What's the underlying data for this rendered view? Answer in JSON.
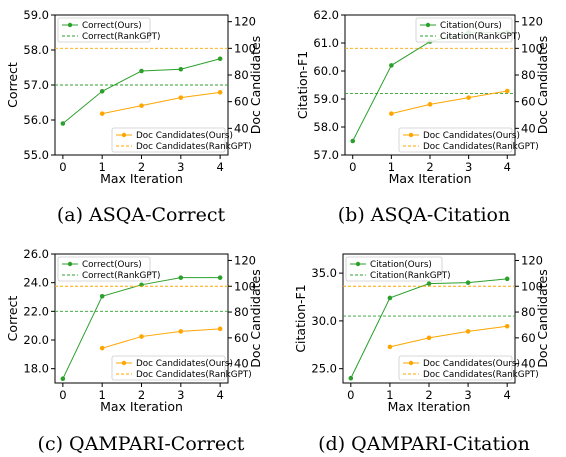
{
  "figure": {
    "colors": {
      "ours_green": "#2ca02c",
      "rank_green": "#2ca02c",
      "ours_orange": "#ffa500",
      "rank_orange": "#ffa500"
    }
  },
  "chart_data": [
    {
      "type": "line",
      "caption": "(a)  ASQA-Correct",
      "xlabel": "Max Iteration",
      "ylabel": "Correct",
      "y2label": "Doc Candidates",
      "x": [
        0,
        1,
        2,
        3,
        4
      ],
      "xticks": [
        "0",
        "1",
        "2",
        "3",
        "4"
      ],
      "ylim": [
        55.0,
        59.0
      ],
      "yticks": [
        "55.0",
        "56.0",
        "57.0",
        "58.0",
        "59.0"
      ],
      "y2lim": [
        20,
        125
      ],
      "y2ticks": [
        "40",
        "60",
        "80",
        "100",
        "120"
      ],
      "grid": false,
      "legend_top": {
        "loc": "upper left",
        "entries": [
          "Correct(Ours)",
          "Correct(RankGPT)"
        ]
      },
      "legend_bottom": {
        "loc": "lower right",
        "entries": [
          "Doc Candidates(Ours)",
          "Doc Candidates(RankGPT)"
        ]
      },
      "series": [
        {
          "name": "Correct(Ours)",
          "axis": "left",
          "style": "solid-marker",
          "color": "#2ca02c",
          "x": [
            0,
            1,
            2,
            3,
            4
          ],
          "values": [
            55.9,
            56.82,
            57.4,
            57.45,
            57.75
          ]
        },
        {
          "name": "Correct(RankGPT)",
          "axis": "left",
          "style": "dashed",
          "color": "#2ca02c",
          "value": 57.0
        },
        {
          "name": "Doc Candidates(Ours)",
          "axis": "right",
          "style": "solid-marker",
          "color": "#ffa500",
          "x": [
            1,
            2,
            3,
            4
          ],
          "values": [
            51,
            57,
            63,
            67
          ]
        },
        {
          "name": "Doc Candidates(RankGPT)",
          "axis": "right",
          "style": "dashed",
          "color": "#ffa500",
          "value": 100
        }
      ]
    },
    {
      "type": "line",
      "caption": "(b)  ASQA-Citation",
      "xlabel": "Max Iteration",
      "ylabel": "Citation-F1",
      "y2label": "Doc Candidates",
      "x": [
        0,
        1,
        2,
        3,
        4
      ],
      "xticks": [
        "0",
        "1",
        "2",
        "3",
        "4"
      ],
      "ylim": [
        57.0,
        62.0
      ],
      "yticks": [
        "57.0",
        "58.0",
        "59.0",
        "60.0",
        "61.0",
        "62.0"
      ],
      "y2lim": [
        20,
        125
      ],
      "y2ticks": [
        "40",
        "60",
        "80",
        "100",
        "120"
      ],
      "grid": false,
      "legend_top": {
        "loc": "upper right",
        "entries": [
          "Citation(Ours)",
          "Citation(RankGPT)"
        ]
      },
      "legend_bottom": {
        "loc": "lower right",
        "entries": [
          "Doc Candidates(Ours)",
          "Doc Candidates(RankGPT)"
        ]
      },
      "series": [
        {
          "name": "Citation(Ours)",
          "axis": "left",
          "style": "solid-marker",
          "color": "#2ca02c",
          "x": [
            0,
            1,
            2,
            3,
            4
          ],
          "values": [
            57.5,
            60.2,
            61.05,
            61.38,
            61.38
          ]
        },
        {
          "name": "Citation(RankGPT)",
          "axis": "left",
          "style": "dashed",
          "color": "#2ca02c",
          "value": 59.2
        },
        {
          "name": "Doc Candidates(Ours)",
          "axis": "right",
          "style": "solid-marker",
          "color": "#ffa500",
          "x": [
            1,
            2,
            3,
            4
          ],
          "values": [
            51,
            58,
            63,
            68
          ]
        },
        {
          "name": "Doc Candidates(RankGPT)",
          "axis": "right",
          "style": "dashed",
          "color": "#ffa500",
          "value": 100
        }
      ]
    },
    {
      "type": "line",
      "caption": "(c)  QAMPARI-Correct",
      "xlabel": "Max Iteration",
      "ylabel": "Correct",
      "y2label": "Doc Candidates",
      "x": [
        0,
        1,
        2,
        3,
        4
      ],
      "xticks": [
        "0",
        "1",
        "2",
        "3",
        "4"
      ],
      "ylim": [
        17.0,
        26.0
      ],
      "yticks": [
        "18.0",
        "20.0",
        "22.0",
        "24.0",
        "26.0"
      ],
      "y2lim": [
        25,
        125
      ],
      "y2ticks": [
        "40",
        "60",
        "80",
        "100",
        "120"
      ],
      "grid": false,
      "legend_top": {
        "loc": "upper left",
        "entries": [
          "Correct(Ours)",
          "Correct(RankGPT)"
        ]
      },
      "legend_bottom": {
        "loc": "lower right",
        "entries": [
          "Doc Candidates(Ours)",
          "Doc Candidates(RankGPT)"
        ]
      },
      "series": [
        {
          "name": "Correct(Ours)",
          "axis": "left",
          "style": "solid-marker",
          "color": "#2ca02c",
          "x": [
            0,
            1,
            2,
            3,
            4
          ],
          "values": [
            17.3,
            23.05,
            23.85,
            24.35,
            24.35
          ]
        },
        {
          "name": "Correct(RankGPT)",
          "axis": "left",
          "style": "dashed",
          "color": "#2ca02c",
          "value": 22.0
        },
        {
          "name": "Doc Candidates(Ours)",
          "axis": "right",
          "style": "solid-marker",
          "color": "#ffa500",
          "x": [
            1,
            2,
            3,
            4
          ],
          "values": [
            52,
            61,
            65,
            67
          ]
        },
        {
          "name": "Doc Candidates(RankGPT)",
          "axis": "right",
          "style": "dashed",
          "color": "#ffa500",
          "value": 100
        }
      ]
    },
    {
      "type": "line",
      "caption": "(d)  QAMPARI-Citation",
      "xlabel": "Max Iteration",
      "ylabel": "Citation-F1",
      "y2label": "Doc Candidates",
      "x": [
        0,
        1,
        2,
        3,
        4
      ],
      "xticks": [
        "0",
        "1",
        "2",
        "3",
        "4"
      ],
      "ylim": [
        23.5,
        37.0
      ],
      "yticks": [
        "25.0",
        "30.0",
        "35.0"
      ],
      "y2lim": [
        25,
        125
      ],
      "y2ticks": [
        "40",
        "60",
        "80",
        "100",
        "120"
      ],
      "grid": false,
      "legend_top": {
        "loc": "upper left",
        "entries": [
          "Citation(Ours)",
          "Citation(RankGPT)"
        ]
      },
      "legend_bottom": {
        "loc": "lower right",
        "entries": [
          "Doc Candidates(Ours)",
          "Doc Candidates(RankGPT)"
        ]
      },
      "series": [
        {
          "name": "Citation(Ours)",
          "axis": "left",
          "style": "solid-marker",
          "color": "#2ca02c",
          "x": [
            0,
            1,
            2,
            3,
            4
          ],
          "values": [
            24.0,
            32.4,
            33.9,
            34.0,
            34.4
          ]
        },
        {
          "name": "Citation(RankGPT)",
          "axis": "left",
          "style": "dashed",
          "color": "#2ca02c",
          "value": 30.5
        },
        {
          "name": "Doc Candidates(Ours)",
          "axis": "right",
          "style": "solid-marker",
          "color": "#ffa500",
          "x": [
            1,
            2,
            3,
            4
          ],
          "values": [
            53,
            60,
            65,
            69
          ]
        },
        {
          "name": "Doc Candidates(RankGPT)",
          "axis": "right",
          "style": "dashed",
          "color": "#ffa500",
          "value": 100
        }
      ]
    }
  ]
}
